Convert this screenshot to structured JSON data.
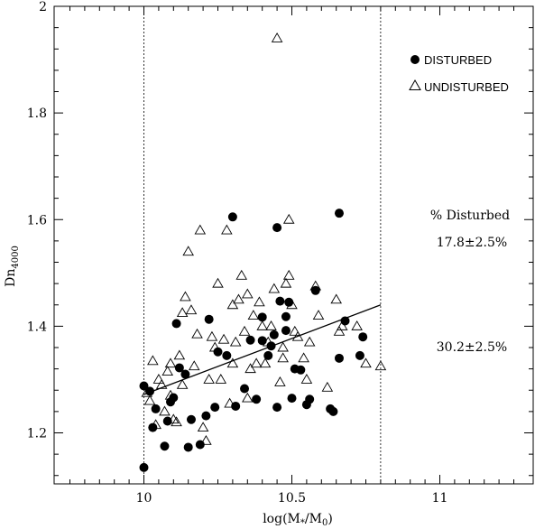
{
  "chart_data": {
    "type": "scatter",
    "xlabel": "log(M",
    "xlabel_sub": "*",
    "xlabel_mid": "/M",
    "xlabel_sub2": "0",
    "xlabel_end": ")",
    "ylabel": "Dn",
    "ylabel_sub": "4000",
    "xlim": [
      9.7,
      11.3
    ],
    "ylim": [
      1.1,
      2.0
    ],
    "x_ticks": [
      10,
      10.5,
      11
    ],
    "x_tick_labels": [
      "10",
      "10.5",
      "11"
    ],
    "y_ticks": [
      1.2,
      1.4,
      1.6,
      1.8,
      2.0
    ],
    "y_tick_labels": [
      "1.2",
      "1.4",
      "1.6",
      "1.8",
      "2"
    ],
    "vertical_lines": [
      10.0,
      10.8
    ],
    "fit_line": {
      "x": [
        10.0,
        10.8
      ],
      "y": [
        1.272,
        1.44
      ]
    },
    "series": [
      {
        "name": "DISTURBED",
        "marker": "filled-circle",
        "points": [
          [
            10.0,
            1.135
          ],
          [
            10.0,
            1.288
          ],
          [
            10.02,
            1.278
          ],
          [
            10.03,
            1.21
          ],
          [
            10.04,
            1.245
          ],
          [
            10.07,
            1.175
          ],
          [
            10.08,
            1.222
          ],
          [
            10.09,
            1.258
          ],
          [
            10.1,
            1.266
          ],
          [
            10.11,
            1.405
          ],
          [
            10.12,
            1.322
          ],
          [
            10.14,
            1.31
          ],
          [
            10.15,
            1.173
          ],
          [
            10.16,
            1.225
          ],
          [
            10.19,
            1.178
          ],
          [
            10.21,
            1.232
          ],
          [
            10.22,
            1.413
          ],
          [
            10.24,
            1.248
          ],
          [
            10.25,
            1.352
          ],
          [
            10.28,
            1.345
          ],
          [
            10.3,
            1.605
          ],
          [
            10.31,
            1.25
          ],
          [
            10.34,
            1.283
          ],
          [
            10.36,
            1.374
          ],
          [
            10.38,
            1.263
          ],
          [
            10.4,
            1.373
          ],
          [
            10.4,
            1.417
          ],
          [
            10.42,
            1.345
          ],
          [
            10.43,
            1.363
          ],
          [
            10.44,
            1.384
          ],
          [
            10.45,
            1.585
          ],
          [
            10.45,
            1.248
          ],
          [
            10.46,
            1.447
          ],
          [
            10.48,
            1.418
          ],
          [
            10.48,
            1.392
          ],
          [
            10.49,
            1.445
          ],
          [
            10.5,
            1.265
          ],
          [
            10.51,
            1.32
          ],
          [
            10.53,
            1.318
          ],
          [
            10.55,
            1.253
          ],
          [
            10.56,
            1.263
          ],
          [
            10.58,
            1.467
          ],
          [
            10.63,
            1.245
          ],
          [
            10.64,
            1.24
          ],
          [
            10.66,
            1.612
          ],
          [
            10.66,
            1.34
          ],
          [
            10.68,
            1.41
          ],
          [
            10.73,
            1.345
          ],
          [
            10.74,
            1.38
          ]
        ]
      },
      {
        "name": "UNDISTURBED",
        "marker": "open-triangle",
        "points": [
          [
            10.01,
            1.275
          ],
          [
            10.02,
            1.26
          ],
          [
            10.03,
            1.335
          ],
          [
            10.04,
            1.215
          ],
          [
            10.05,
            1.3
          ],
          [
            10.06,
            1.29
          ],
          [
            10.07,
            1.24
          ],
          [
            10.08,
            1.315
          ],
          [
            10.09,
            1.27
          ],
          [
            10.09,
            1.33
          ],
          [
            10.1,
            1.225
          ],
          [
            10.11,
            1.22
          ],
          [
            10.12,
            1.345
          ],
          [
            10.13,
            1.29
          ],
          [
            10.13,
            1.425
          ],
          [
            10.14,
            1.455
          ],
          [
            10.15,
            1.54
          ],
          [
            10.16,
            1.43
          ],
          [
            10.17,
            1.325
          ],
          [
            10.18,
            1.385
          ],
          [
            10.19,
            1.58
          ],
          [
            10.2,
            1.21
          ],
          [
            10.21,
            1.185
          ],
          [
            10.22,
            1.3
          ],
          [
            10.23,
            1.38
          ],
          [
            10.24,
            1.36
          ],
          [
            10.25,
            1.48
          ],
          [
            10.26,
            1.3
          ],
          [
            10.27,
            1.375
          ],
          [
            10.28,
            1.58
          ],
          [
            10.29,
            1.255
          ],
          [
            10.3,
            1.33
          ],
          [
            10.3,
            1.44
          ],
          [
            10.31,
            1.37
          ],
          [
            10.32,
            1.45
          ],
          [
            10.33,
            1.495
          ],
          [
            10.34,
            1.39
          ],
          [
            10.35,
            1.265
          ],
          [
            10.35,
            1.46
          ],
          [
            10.36,
            1.32
          ],
          [
            10.37,
            1.42
          ],
          [
            10.38,
            1.33
          ],
          [
            10.39,
            1.445
          ],
          [
            10.4,
            1.4
          ],
          [
            10.41,
            1.33
          ],
          [
            10.42,
            1.37
          ],
          [
            10.43,
            1.4
          ],
          [
            10.44,
            1.47
          ],
          [
            10.45,
            1.94
          ],
          [
            10.46,
            1.295
          ],
          [
            10.47,
            1.34
          ],
          [
            10.47,
            1.36
          ],
          [
            10.48,
            1.48
          ],
          [
            10.49,
            1.495
          ],
          [
            10.49,
            1.6
          ],
          [
            10.5,
            1.44
          ],
          [
            10.51,
            1.39
          ],
          [
            10.52,
            1.38
          ],
          [
            10.54,
            1.34
          ],
          [
            10.55,
            1.3
          ],
          [
            10.56,
            1.37
          ],
          [
            10.58,
            1.475
          ],
          [
            10.59,
            1.42
          ],
          [
            10.62,
            1.285
          ],
          [
            10.65,
            1.45
          ],
          [
            10.66,
            1.39
          ],
          [
            10.67,
            1.4
          ],
          [
            10.72,
            1.4
          ],
          [
            10.75,
            1.33
          ],
          [
            10.8,
            1.325
          ]
        ]
      }
    ],
    "legend": [
      {
        "label": "DISTURBED",
        "marker": "filled-circle"
      },
      {
        "label": "UNDISTURBED",
        "marker": "open-triangle"
      }
    ],
    "legend_position": "top-right",
    "annotations": {
      "header": "% Disturbed",
      "value_high": "17.8±2.5%",
      "value_low": "30.2±2.5%"
    },
    "grid": false
  }
}
